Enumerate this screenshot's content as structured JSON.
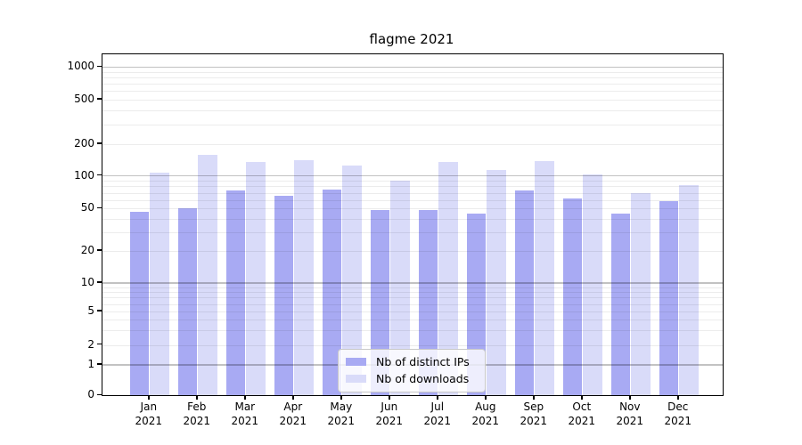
{
  "title": "flagme 2021",
  "chart_data": {
    "type": "bar",
    "title": "flagme 2021",
    "categories": [
      "Jan 2021",
      "Feb 2021",
      "Mar 2021",
      "Apr 2021",
      "May 2021",
      "Jun 2021",
      "Jul 2021",
      "Aug 2021",
      "Sep 2021",
      "Oct 2021",
      "Nov 2021",
      "Dec 2021"
    ],
    "series": [
      {
        "name": "Nb of distinct IPs",
        "color": "#a8aaf3",
        "values": [
          47,
          50,
          73,
          66,
          75,
          48,
          48,
          45,
          73,
          62,
          45,
          59
        ]
      },
      {
        "name": "Nb of downloads",
        "color": "#d9dbf9",
        "values": [
          107,
          158,
          136,
          141,
          125,
          91,
          136,
          114,
          138,
          104,
          70,
          82
        ]
      }
    ],
    "yscale": "symlog",
    "ylim": [
      0,
      1000
    ],
    "y_ticks": [
      {
        "label": "1000",
        "value": 1000
      },
      {
        "label": "500",
        "value": 500
      },
      {
        "label": "200",
        "value": 200
      },
      {
        "label": "100",
        "value": 100
      },
      {
        "label": "50",
        "value": 50
      },
      {
        "label": "20",
        "value": 20
      },
      {
        "label": "10",
        "value": 10
      },
      {
        "label": "5",
        "value": 5
      },
      {
        "label": "2",
        "value": 2
      },
      {
        "label": "1",
        "value": 1
      },
      {
        "label": "0",
        "value": 0
      }
    ],
    "grid": true,
    "legend_position": "lower center"
  }
}
